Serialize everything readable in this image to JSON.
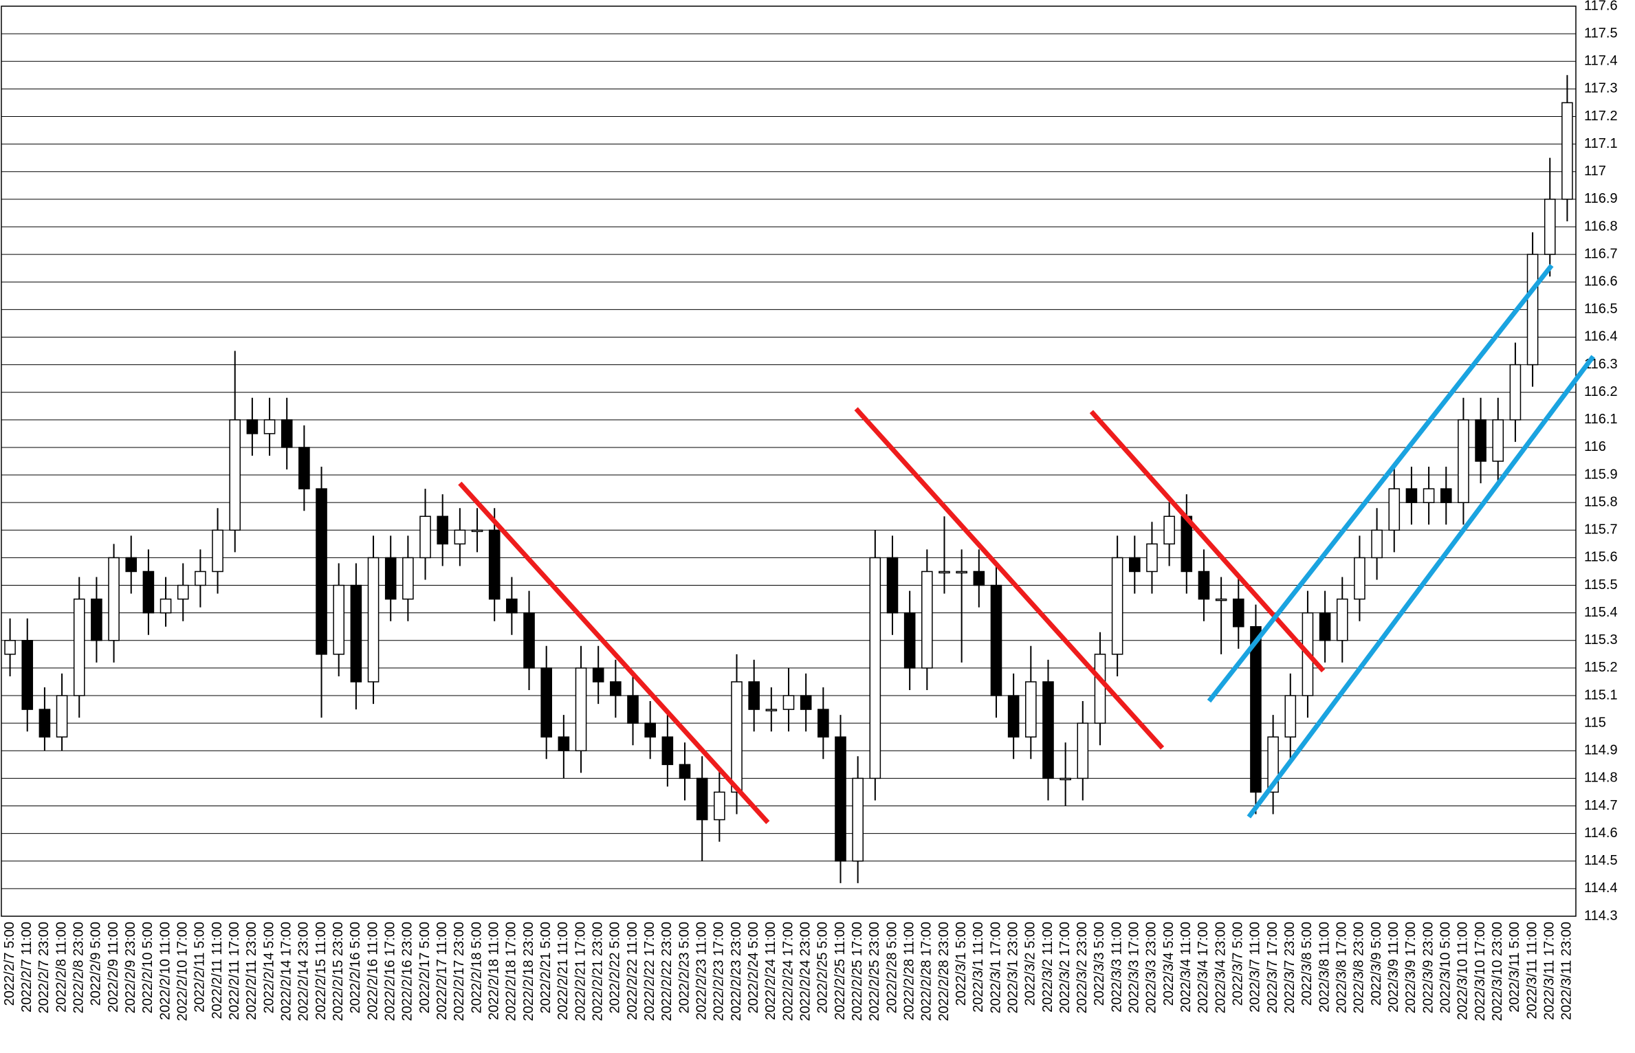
{
  "chart_data": {
    "type": "candlestick",
    "categories": [
      "2022/2/7 5:00",
      "2022/2/7 11:00",
      "2022/2/7 23:00",
      "2022/2/8 11:00",
      "2022/2/8 23:00",
      "2022/2/9 5:00",
      "2022/2/9 11:00",
      "2022/2/9 23:00",
      "2022/2/10 5:00",
      "2022/2/10 11:00",
      "2022/2/10 17:00",
      "2022/2/11 5:00",
      "2022/2/11 11:00",
      "2022/2/11 17:00",
      "2022/2/11 23:00",
      "2022/2/14 5:00",
      "2022/2/14 17:00",
      "2022/2/14 23:00",
      "2022/2/15 11:00",
      "2022/2/15 23:00",
      "2022/2/16 5:00",
      "2022/2/16 11:00",
      "2022/2/16 17:00",
      "2022/2/16 23:00",
      "2022/2/17 5:00",
      "2022/2/17 11:00",
      "2022/2/17 23:00",
      "2022/2/18 5:00",
      "2022/2/18 11:00",
      "2022/2/18 17:00",
      "2022/2/18 23:00",
      "2022/2/21 5:00",
      "2022/2/21 11:00",
      "2022/2/21 17:00",
      "2022/2/21 23:00",
      "2022/2/22 5:00",
      "2022/2/22 11:00",
      "2022/2/22 17:00",
      "2022/2/22 23:00",
      "2022/2/23 5:00",
      "2022/2/23 11:00",
      "2022/2/23 17:00",
      "2022/2/23 23:00",
      "2022/2/24 5:00",
      "2022/2/24 11:00",
      "2022/2/24 17:00",
      "2022/2/24 23:00",
      "2022/2/25 5:00",
      "2022/2/25 11:00",
      "2022/2/25 17:00",
      "2022/2/25 23:00",
      "2022/2/28 5:00",
      "2022/2/28 11:00",
      "2022/2/28 17:00",
      "2022/2/28 23:00",
      "2022/3/1 5:00",
      "2022/3/1 11:00",
      "2022/3/1 17:00",
      "2022/3/1 23:00",
      "2022/3/2 5:00",
      "2022/3/2 11:00",
      "2022/3/2 17:00",
      "2022/3/2 23:00",
      "2022/3/3 5:00",
      "2022/3/3 11:00",
      "2022/3/3 17:00",
      "2022/3/3 23:00",
      "2022/3/4 5:00",
      "2022/3/4 11:00",
      "2022/3/4 17:00",
      "2022/3/4 23:00",
      "2022/3/7 5:00",
      "2022/3/7 11:00",
      "2022/3/7 17:00",
      "2022/3/7 23:00",
      "2022/3/8 5:00",
      "2022/3/8 11:00",
      "2022/3/8 17:00",
      "2022/3/8 23:00",
      "2022/3/9 5:00",
      "2022/3/9 11:00",
      "2022/3/9 17:00",
      "2022/3/9 23:00",
      "2022/3/10 5:00",
      "2022/3/10 11:00",
      "2022/3/10 17:00",
      "2022/3/10 23:00",
      "2022/3/11 5:00",
      "2022/3/11 11:00",
      "2022/3/11 17:00",
      "2022/3/11 23:00"
    ],
    "open": [
      115.25,
      115.3,
      115.05,
      114.95,
      115.1,
      115.45,
      115.3,
      115.6,
      115.55,
      115.4,
      115.45,
      115.5,
      115.55,
      115.7,
      116.1,
      116.05,
      116.1,
      116.0,
      115.85,
      115.25,
      115.5,
      115.15,
      115.6,
      115.45,
      115.6,
      115.75,
      115.65,
      115.7,
      115.7,
      115.45,
      115.4,
      115.2,
      114.95,
      114.9,
      115.2,
      115.15,
      115.1,
      115.0,
      114.95,
      114.85,
      114.8,
      114.65,
      114.75,
      115.15,
      115.05,
      115.05,
      115.1,
      115.05,
      114.95,
      114.5,
      114.8,
      115.6,
      115.4,
      115.2,
      115.55,
      115.55,
      115.55,
      115.5,
      115.1,
      114.95,
      115.15,
      114.8,
      114.8,
      115.0,
      115.25,
      115.6,
      115.55,
      115.65,
      115.75,
      115.55,
      115.45,
      115.45,
      115.35,
      114.75,
      114.95,
      115.1,
      115.4,
      115.3,
      115.45,
      115.6,
      115.7,
      115.85,
      115.8,
      115.85,
      115.8,
      116.1,
      115.95,
      116.1,
      116.3,
      116.7,
      116.9
    ],
    "high": [
      115.38,
      115.38,
      115.13,
      115.18,
      115.53,
      115.53,
      115.65,
      115.68,
      115.63,
      115.53,
      115.58,
      115.63,
      115.78,
      116.35,
      116.18,
      116.18,
      116.18,
      116.08,
      115.93,
      115.58,
      115.58,
      115.68,
      115.68,
      115.68,
      115.85,
      115.83,
      115.78,
      115.78,
      115.78,
      115.53,
      115.48,
      115.28,
      115.03,
      115.28,
      115.28,
      115.23,
      115.18,
      115.08,
      115.03,
      114.93,
      114.88,
      114.83,
      115.25,
      115.23,
      115.13,
      115.2,
      115.18,
      115.13,
      115.03,
      114.88,
      115.7,
      115.68,
      115.48,
      115.63,
      115.75,
      115.63,
      115.63,
      115.58,
      115.18,
      115.28,
      115.23,
      114.93,
      115.08,
      115.33,
      115.68,
      115.68,
      115.73,
      115.8,
      115.83,
      115.63,
      115.53,
      115.53,
      115.43,
      115.03,
      115.18,
      115.48,
      115.48,
      115.53,
      115.68,
      115.78,
      115.93,
      115.93,
      115.93,
      115.93,
      116.18,
      116.18,
      116.18,
      116.38,
      116.78,
      117.05,
      117.35
    ],
    "low": [
      115.17,
      114.97,
      114.9,
      114.9,
      115.02,
      115.22,
      115.22,
      115.47,
      115.32,
      115.35,
      115.37,
      115.42,
      115.47,
      115.62,
      115.97,
      115.97,
      115.92,
      115.77,
      115.02,
      115.17,
      115.05,
      115.07,
      115.37,
      115.37,
      115.52,
      115.57,
      115.57,
      115.62,
      115.37,
      115.32,
      115.12,
      114.87,
      114.8,
      114.82,
      115.07,
      115.02,
      114.92,
      114.87,
      114.77,
      114.72,
      114.5,
      114.57,
      114.67,
      114.97,
      114.97,
      114.97,
      114.97,
      114.87,
      114.42,
      114.42,
      114.72,
      115.32,
      115.12,
      115.12,
      115.47,
      115.22,
      115.42,
      115.02,
      114.87,
      114.87,
      114.72,
      114.7,
      114.72,
      114.92,
      115.17,
      115.47,
      115.47,
      115.57,
      115.47,
      115.37,
      115.25,
      115.27,
      114.67,
      114.67,
      114.87,
      115.02,
      115.22,
      115.22,
      115.37,
      115.52,
      115.62,
      115.72,
      115.72,
      115.72,
      115.72,
      115.87,
      115.87,
      116.02,
      116.22,
      116.62,
      116.82
    ],
    "close": [
      115.3,
      115.05,
      114.95,
      115.1,
      115.45,
      115.3,
      115.6,
      115.55,
      115.4,
      115.45,
      115.5,
      115.55,
      115.7,
      116.1,
      116.05,
      116.1,
      116.0,
      115.85,
      115.25,
      115.5,
      115.15,
      115.6,
      115.45,
      115.6,
      115.75,
      115.65,
      115.7,
      115.7,
      115.45,
      115.4,
      115.2,
      114.95,
      114.9,
      115.2,
      115.15,
      115.1,
      115.0,
      114.95,
      114.85,
      114.8,
      114.65,
      114.75,
      115.15,
      115.05,
      115.05,
      115.1,
      115.05,
      114.95,
      114.5,
      114.8,
      115.6,
      115.4,
      115.2,
      115.55,
      115.55,
      115.55,
      115.5,
      115.1,
      114.95,
      115.15,
      114.8,
      114.8,
      115.0,
      115.25,
      115.6,
      115.55,
      115.65,
      115.75,
      115.55,
      115.45,
      115.45,
      115.35,
      114.75,
      114.95,
      115.1,
      115.4,
      115.3,
      115.45,
      115.6,
      115.7,
      115.85,
      115.8,
      115.85,
      115.8,
      116.1,
      115.95,
      116.1,
      116.3,
      116.7,
      116.9,
      117.25
    ],
    "up_color": "#ffffff",
    "down_color": "#000000",
    "ylim": [
      114.3,
      117.6
    ],
    "yticks": [
      114.3,
      114.4,
      114.5,
      114.6,
      114.7,
      114.8,
      114.9,
      115,
      115.1,
      115.2,
      115.3,
      115.4,
      115.5,
      115.6,
      115.7,
      115.8,
      115.9,
      116,
      116.1,
      116.2,
      116.3,
      116.4,
      116.5,
      116.6,
      116.7,
      116.8,
      116.9,
      117,
      117.1,
      117.2,
      117.3,
      117.4,
      117.5,
      117.6
    ],
    "grid": true,
    "trendlines": [
      {
        "color": "#ee1c1c",
        "x": [
          26.0,
          43.8
        ],
        "y": [
          115.87,
          114.64
        ]
      },
      {
        "color": "#ee1c1c",
        "x": [
          48.9,
          66.6
        ],
        "y": [
          116.14,
          114.91
        ]
      },
      {
        "color": "#ee1c1c",
        "x": [
          62.5,
          75.9
        ],
        "y": [
          116.13,
          115.19
        ]
      },
      {
        "color": "#1aa3e0",
        "x": [
          69.3,
          89.1
        ],
        "y": [
          115.08,
          116.66
        ]
      },
      {
        "color": "#1aa3e0",
        "x": [
          71.6,
          91.5
        ],
        "y": [
          114.66,
          116.33
        ]
      }
    ]
  }
}
